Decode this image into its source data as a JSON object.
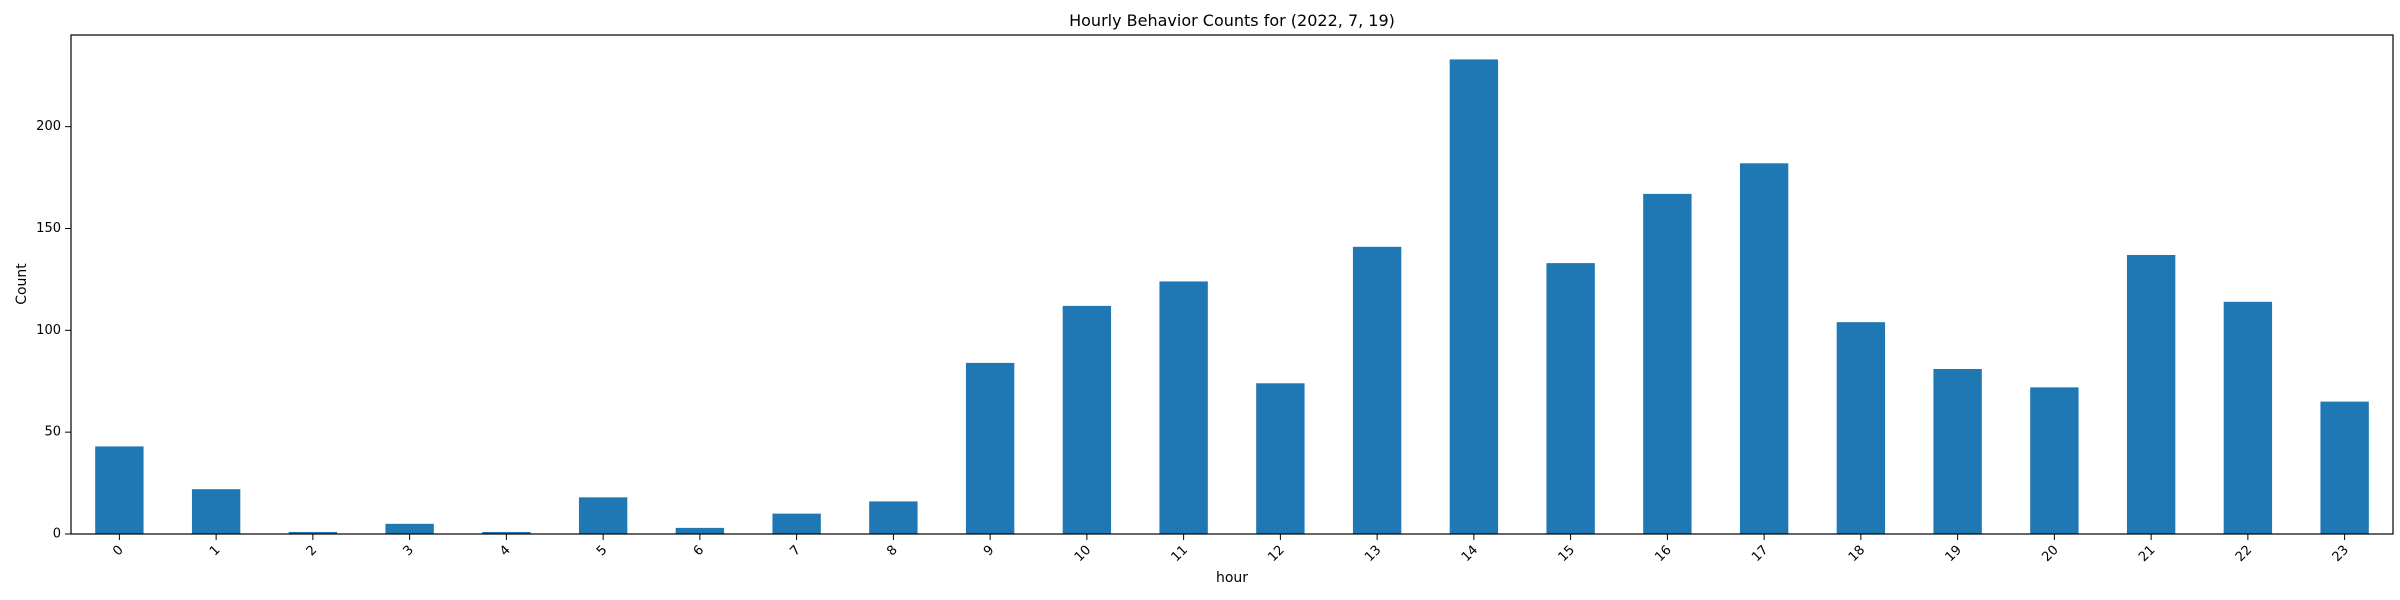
{
  "chart_data": {
    "type": "bar",
    "title": "Hourly Behavior Counts for (2022, 7, 19)",
    "xlabel": "hour",
    "ylabel": "Count",
    "categories": [
      "0",
      "1",
      "2",
      "3",
      "4",
      "5",
      "6",
      "7",
      "8",
      "9",
      "10",
      "11",
      "12",
      "13",
      "14",
      "15",
      "16",
      "17",
      "18",
      "19",
      "20",
      "21",
      "22",
      "23"
    ],
    "values": [
      43,
      22,
      1,
      5,
      1,
      18,
      3,
      10,
      16,
      84,
      112,
      124,
      74,
      141,
      233,
      133,
      167,
      182,
      104,
      81,
      72,
      137,
      114,
      65
    ],
    "ylim": [
      0,
      245
    ],
    "yticks": [
      0,
      50,
      100,
      150,
      200
    ],
    "grid": false,
    "legend": false,
    "bar_color": "#1f77b4"
  }
}
